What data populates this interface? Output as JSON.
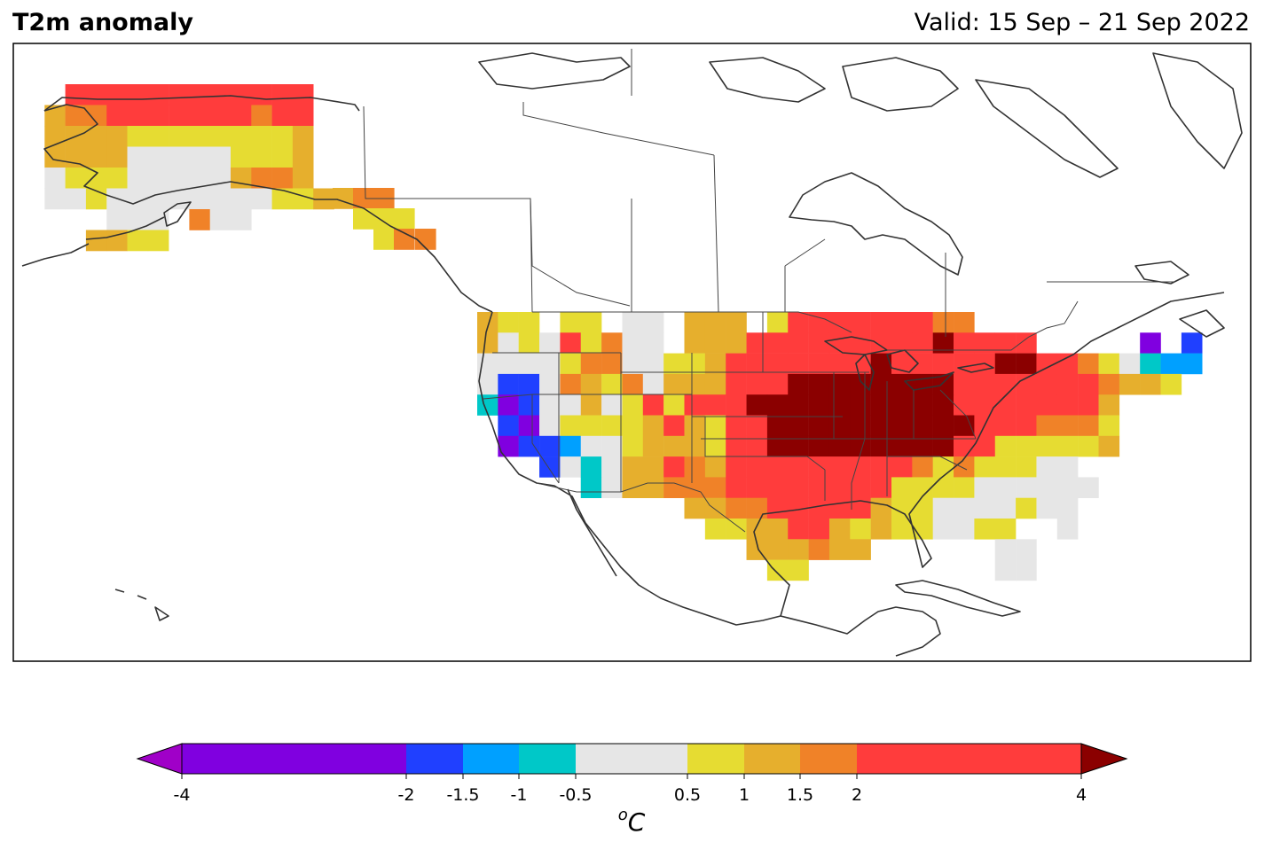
{
  "title": "T2m anomaly",
  "valid": "Valid: 15 Sep – 21 Sep 2022",
  "colorbar": {
    "unit_prefix": "o",
    "unit": "C",
    "ticks": [
      "-4",
      "-2",
      "-1.5",
      "-1",
      "-0.5",
      "0.5",
      "1",
      "1.5",
      "2",
      "4"
    ],
    "bins": [
      {
        "from": -4,
        "to": -2,
        "color": "#8000e0"
      },
      {
        "from": -2,
        "to": -1.5,
        "color": "#2040ff"
      },
      {
        "from": -1.5,
        "to": -1,
        "color": "#00a0ff"
      },
      {
        "from": -1,
        "to": -0.5,
        "color": "#00c8c8"
      },
      {
        "from": -0.5,
        "to": 0.5,
        "color": "#e6e6e6"
      },
      {
        "from": 0.5,
        "to": 1,
        "color": "#e6dc32"
      },
      {
        "from": 1,
        "to": 1.5,
        "color": "#e6af2d"
      },
      {
        "from": 1.5,
        "to": 2,
        "color": "#f08228"
      },
      {
        "from": 2,
        "to": 4,
        "color": "#ff3c3c"
      }
    ],
    "under_color": "#a000c8",
    "over_color": "#8b0000"
  }
}
